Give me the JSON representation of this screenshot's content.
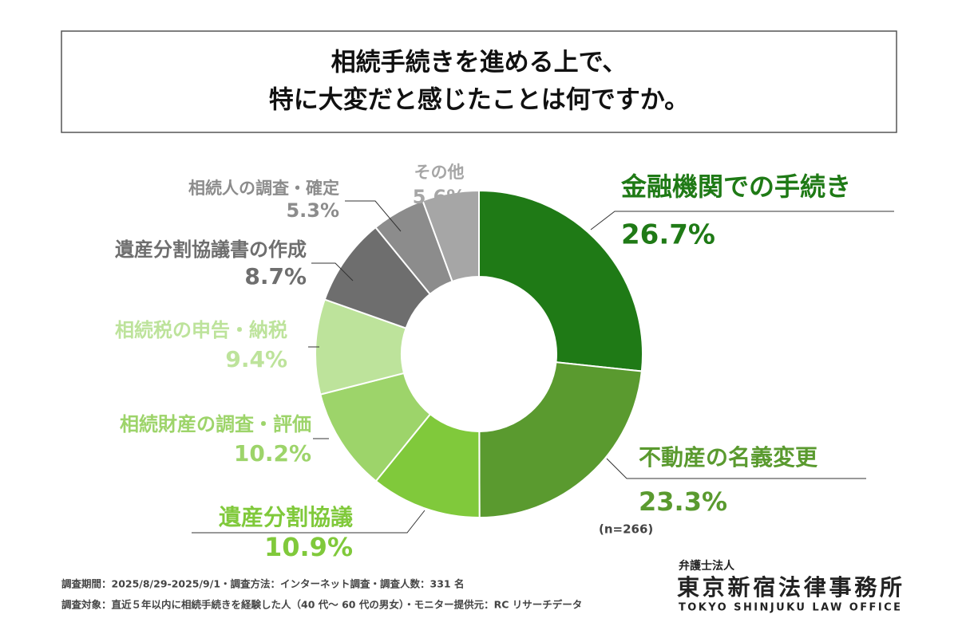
{
  "chart_data": {
    "type": "donut",
    "title_lines": [
      "相続手続きを進める上で、",
      "特に大変だと感じたことは何ですか。"
    ],
    "categories": [
      "金融機関での手続き",
      "不動産の名義変更",
      "遺産分割協議",
      "相続財産の調査・評価",
      "相続税の申告・納税",
      "遺産分割協議書の作成",
      "相続人の調査・確定",
      "その他"
    ],
    "values": [
      26.7,
      23.3,
      10.9,
      10.2,
      9.4,
      8.7,
      5.3,
      5.6
    ],
    "value_labels": [
      "26.7%",
      "23.3%",
      "10.9%",
      "10.2%",
      "9.4%",
      "8.7%",
      "5.3%",
      "5.6%"
    ],
    "colors": [
      "#1f7a16",
      "#5a9a2f",
      "#80c93b",
      "#9dd46a",
      "#bde39b",
      "#6e6e6e",
      "#8c8c8c",
      "#a6a6a6"
    ],
    "note": "(n=266)",
    "footer": [
      "調査期間：2025/8/29-2025/9/1・調査方法：インターネット調査・調査人数：331 名",
      "調査対象：直近５年以内に相続手続きを経験した人（40 代～ 60 代の男女）・モニター提供元：RC リサーチデータ"
    ],
    "logo": [
      "弁護士法人",
      "東京新宿法律事務所",
      "TOKYO SHINJUKU LAW OFFICE"
    ]
  }
}
